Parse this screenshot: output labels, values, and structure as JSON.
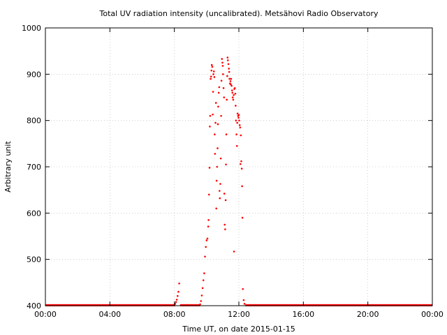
{
  "chart_data": {
    "type": "scatter",
    "title": "Total UV radiation intensity (uncalibrated). Metsähovi Radio Observatory",
    "xlabel": "Time UT, on date 2015-01-15",
    "ylabel": "Arbitrary unit",
    "xlim": [
      0,
      24
    ],
    "ylim": [
      400,
      1000
    ],
    "x_ticks": [
      0,
      4,
      8,
      12,
      16,
      20,
      24
    ],
    "x_tick_labels": [
      "00:00",
      "04:00",
      "08:00",
      "12:00",
      "16:00",
      "20:00",
      "00:00"
    ],
    "y_ticks": [
      400,
      500,
      600,
      700,
      800,
      900,
      1000
    ],
    "y_tick_labels": [
      "400",
      "500",
      "600",
      "700",
      "800",
      "900",
      "1000"
    ],
    "grid": true,
    "series": [
      {
        "color": "#ff0000",
        "points": [
          [
            8.05,
            404
          ],
          [
            8.1,
            408
          ],
          [
            8.15,
            413
          ],
          [
            8.2,
            421
          ],
          [
            8.25,
            430
          ],
          [
            8.3,
            448
          ],
          [
            9.6,
            403
          ],
          [
            9.65,
            410
          ],
          [
            9.7,
            422
          ],
          [
            9.75,
            438
          ],
          [
            9.8,
            455
          ],
          [
            9.85,
            470
          ],
          [
            9.9,
            506
          ],
          [
            9.95,
            527
          ],
          [
            10.0,
            541
          ],
          [
            10.05,
            545
          ],
          [
            10.1,
            571
          ],
          [
            10.12,
            585
          ],
          [
            10.15,
            640
          ],
          [
            10.18,
            698
          ],
          [
            10.2,
            787
          ],
          [
            10.22,
            810
          ],
          [
            10.25,
            890
          ],
          [
            10.28,
            895
          ],
          [
            10.3,
            908
          ],
          [
            10.32,
            920
          ],
          [
            10.35,
            916
          ],
          [
            10.38,
            813
          ],
          [
            10.4,
            862
          ],
          [
            10.42,
            900
          ],
          [
            10.45,
            906
          ],
          [
            10.48,
            894
          ],
          [
            10.5,
            770
          ],
          [
            10.52,
            728
          ],
          [
            10.55,
            795
          ],
          [
            10.58,
            838
          ],
          [
            10.6,
            610
          ],
          [
            10.62,
            670
          ],
          [
            10.65,
            700
          ],
          [
            10.68,
            740
          ],
          [
            10.7,
            792
          ],
          [
            10.72,
            830
          ],
          [
            10.75,
            860
          ],
          [
            10.78,
            872
          ],
          [
            10.8,
            648
          ],
          [
            10.82,
            632
          ],
          [
            10.85,
            663
          ],
          [
            10.88,
            718
          ],
          [
            10.9,
            810
          ],
          [
            10.92,
            886
          ],
          [
            10.95,
            933
          ],
          [
            10.98,
            925
          ],
          [
            11.0,
            918
          ],
          [
            11.02,
            900
          ],
          [
            11.05,
            870
          ],
          [
            11.08,
            850
          ],
          [
            11.1,
            642
          ],
          [
            11.12,
            575
          ],
          [
            11.15,
            565
          ],
          [
            11.18,
            628
          ],
          [
            11.2,
            705
          ],
          [
            11.22,
            770
          ],
          [
            11.25,
            845
          ],
          [
            11.28,
            896
          ],
          [
            11.3,
            936
          ],
          [
            11.32,
            930
          ],
          [
            11.35,
            922
          ],
          [
            11.38,
            912
          ],
          [
            11.4,
            905
          ],
          [
            11.42,
            890
          ],
          [
            11.45,
            880
          ],
          [
            11.48,
            885
          ],
          [
            11.5,
            878
          ],
          [
            11.52,
            890
          ],
          [
            11.55,
            875
          ],
          [
            11.58,
            865
          ],
          [
            11.6,
            860
          ],
          [
            11.62,
            850
          ],
          [
            11.65,
            845
          ],
          [
            11.68,
            855
          ],
          [
            11.7,
            517
          ],
          [
            11.72,
            868
          ],
          [
            11.75,
            870
          ],
          [
            11.78,
            858
          ],
          [
            11.8,
            832
          ],
          [
            11.82,
            800
          ],
          [
            11.85,
            770
          ],
          [
            11.88,
            745
          ],
          [
            11.9,
            795
          ],
          [
            11.92,
            815
          ],
          [
            11.95,
            810
          ],
          [
            11.98,
            806
          ],
          [
            12.0,
            812
          ],
          [
            12.02,
            800
          ],
          [
            12.05,
            790
          ],
          [
            12.08,
            785
          ],
          [
            12.1,
            706
          ],
          [
            12.12,
            768
          ],
          [
            12.15,
            712
          ],
          [
            12.18,
            696
          ],
          [
            12.2,
            658
          ],
          [
            12.22,
            590
          ],
          [
            12.25,
            436
          ],
          [
            12.3,
            412
          ],
          [
            12.35,
            404
          ]
        ]
      }
    ],
    "baseline": {
      "value": 401,
      "ranges": [
        [
          0,
          8.05
        ],
        [
          8.35,
          9.6
        ],
        [
          12.4,
          24
        ]
      ]
    }
  }
}
